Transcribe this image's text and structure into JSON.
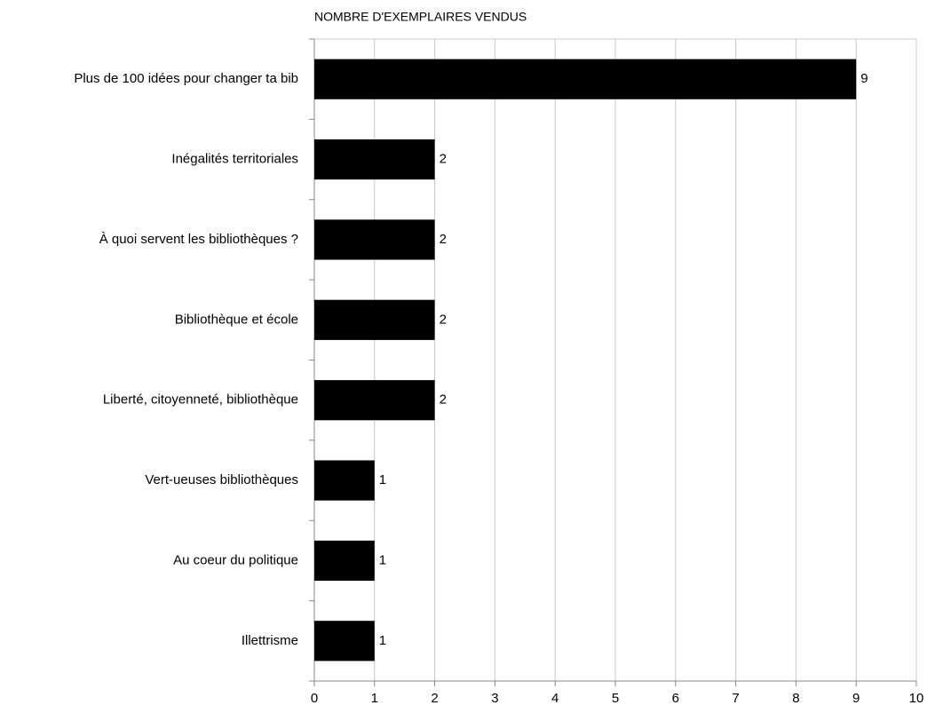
{
  "chart_data": {
    "type": "bar",
    "orientation": "horizontal",
    "title": "NOMBRE D'EXEMPLAIRES VENDUS",
    "categories": [
      "Plus de 100 idées pour changer ta bib",
      "Inégalités territoriales",
      "À quoi servent les bibliothèques ?",
      "Bibliothèque et école",
      "Liberté, citoyenneté, bibliothèque",
      "Vert-ueuses bibliothèques",
      "Au coeur du politique",
      "Illettrisme"
    ],
    "values": [
      9,
      2,
      2,
      2,
      2,
      1,
      1,
      1
    ],
    "color": "#000000",
    "xlim": [
      0,
      10
    ],
    "xticks": [
      0,
      1,
      2,
      3,
      4,
      5,
      6,
      7,
      8,
      9,
      10
    ],
    "grid": true
  }
}
